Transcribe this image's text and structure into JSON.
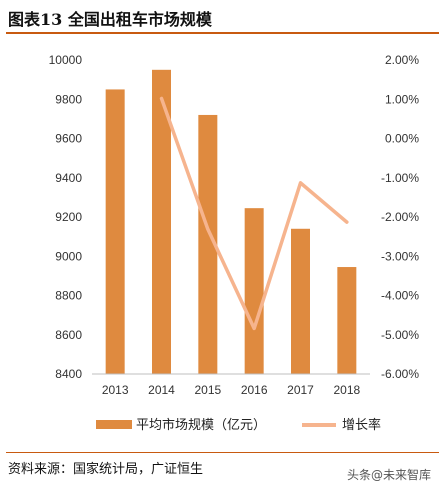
{
  "title": "图表13 全国出租车市场规模",
  "source": "资料来源：国家统计局，广证恒生",
  "watermark": "头条@未来智库",
  "colors": {
    "bar": "#df8a3f",
    "line": "#f6b48e",
    "rule": "#c85a10"
  },
  "chart_data": {
    "type": "bar",
    "categories": [
      "2013",
      "2014",
      "2015",
      "2016",
      "2017",
      "2018"
    ],
    "series": [
      {
        "name": "平均市场规模（亿元）",
        "type": "bar",
        "axis": "left",
        "values": [
          9850,
          9950,
          9720,
          9245,
          9140,
          8945
        ]
      },
      {
        "name": "增长率",
        "type": "line",
        "axis": "right",
        "values": [
          null,
          1.02,
          -2.31,
          -4.84,
          -1.13,
          -2.13
        ]
      }
    ],
    "y_left": {
      "min": 8400,
      "max": 10000,
      "step": 200,
      "ticks": [
        "8400",
        "8600",
        "8800",
        "9000",
        "9200",
        "9400",
        "9600",
        "9800",
        "10000"
      ]
    },
    "y_right": {
      "min": -6,
      "max": 2,
      "step": 1,
      "ticks": [
        "-6.00%",
        "-5.00%",
        "-4.00%",
        "-3.00%",
        "-2.00%",
        "-1.00%",
        "0.00%",
        "1.00%",
        "2.00%"
      ]
    },
    "grid": false,
    "legend": "bottom"
  }
}
